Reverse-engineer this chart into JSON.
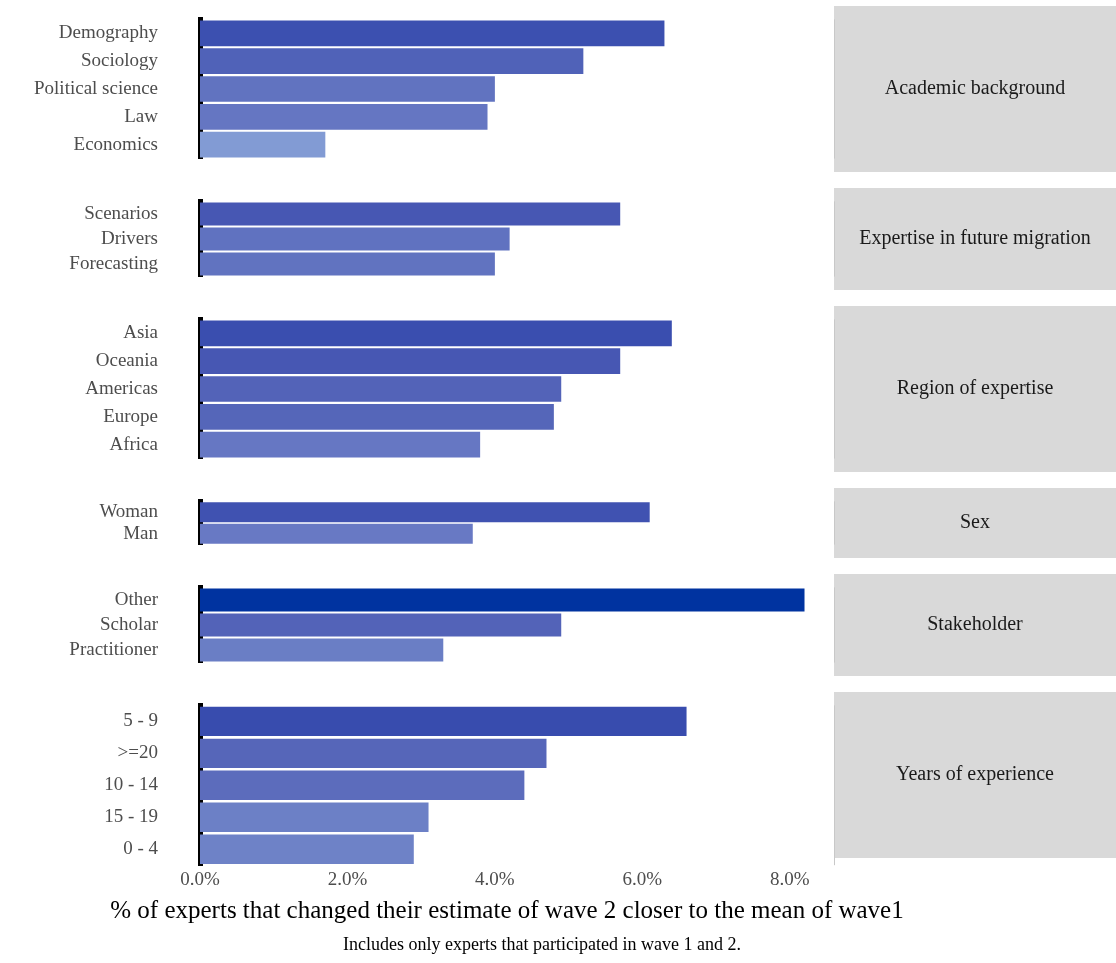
{
  "chart_data": [
    {
      "type": "bar",
      "orientation": "horizontal",
      "annotations": [
        "Academic background"
      ],
      "categories": [
        "Demography",
        "Sociology",
        "Political science",
        "Law",
        "Economics"
      ],
      "values": [
        6.3,
        5.2,
        4.0,
        3.9,
        1.7
      ],
      "colors": [
        "#3c50b0",
        "#5062b8",
        "#6173c0",
        "#6576c2",
        "#829bd4"
      ],
      "xlim": [
        0,
        8.6
      ],
      "tick_labels": "y",
      "grid": false
    },
    {
      "type": "bar",
      "orientation": "horizontal",
      "annotations": [
        "Expertise in future migration"
      ],
      "categories": [
        "Scenarios",
        "Drivers",
        "Forecasting"
      ],
      "values": [
        5.7,
        4.2,
        4.0
      ],
      "colors": [
        "#4757b3",
        "#6072c0",
        "#6173c0"
      ],
      "xlim": [
        0,
        8.6
      ],
      "tick_labels": "y",
      "grid": false
    },
    {
      "type": "bar",
      "orientation": "horizontal",
      "annotations": [
        "Region of expertise"
      ],
      "categories": [
        "Asia",
        "Oceania",
        "Americas",
        "Europe",
        "Africa"
      ],
      "values": [
        6.4,
        5.7,
        4.9,
        4.8,
        3.8
      ],
      "colors": [
        "#3a4eaf",
        "#4757b3",
        "#5363b8",
        "#5566b9",
        "#6677c3"
      ],
      "xlim": [
        0,
        8.6
      ],
      "tick_labels": "y",
      "grid": false
    },
    {
      "type": "bar",
      "orientation": "horizontal",
      "annotations": [
        "Sex"
      ],
      "categories": [
        "Woman",
        "Man"
      ],
      "values": [
        6.1,
        3.7
      ],
      "colors": [
        "#4052b1",
        "#6879c4"
      ],
      "xlim": [
        0,
        8.6
      ],
      "tick_labels": "y",
      "grid": false
    },
    {
      "type": "bar",
      "orientation": "horizontal",
      "annotations": [
        "Stakeholder"
      ],
      "categories": [
        "Other",
        "Scholar",
        "Practitioner"
      ],
      "values": [
        8.2,
        4.9,
        3.3
      ],
      "colors": [
        "#0033a0",
        "#5363b8",
        "#6a7ec5"
      ],
      "xlim": [
        0,
        8.6
      ],
      "tick_labels": "y",
      "grid": false
    },
    {
      "type": "bar",
      "orientation": "horizontal",
      "annotations": [
        "Years of experience",
        "Includes only experts that participated in wave 1 and 2."
      ],
      "categories": [
        "5 - 9",
        ">=20",
        "10 - 14",
        "15 - 19",
        "0 - 4"
      ],
      "values": [
        6.6,
        4.7,
        4.4,
        3.1,
        2.9
      ],
      "colors": [
        "#384cae",
        "#5666b9",
        "#5c6cbc",
        "#6c80c6",
        "#6e82c7"
      ],
      "xlim": [
        0,
        8.6
      ],
      "xticks": [
        {
          "value": 0,
          "label": "0.0%"
        },
        {
          "value": 2,
          "label": "2.0%"
        },
        {
          "value": 4,
          "label": "4.0%"
        },
        {
          "value": 6,
          "label": "6.0%"
        },
        {
          "value": 8,
          "label": "8.0%"
        }
      ],
      "grid": false,
      "xlabel": "% of experts that changed their estimate of wave 2 closer to the mean of wave1"
    }
  ]
}
